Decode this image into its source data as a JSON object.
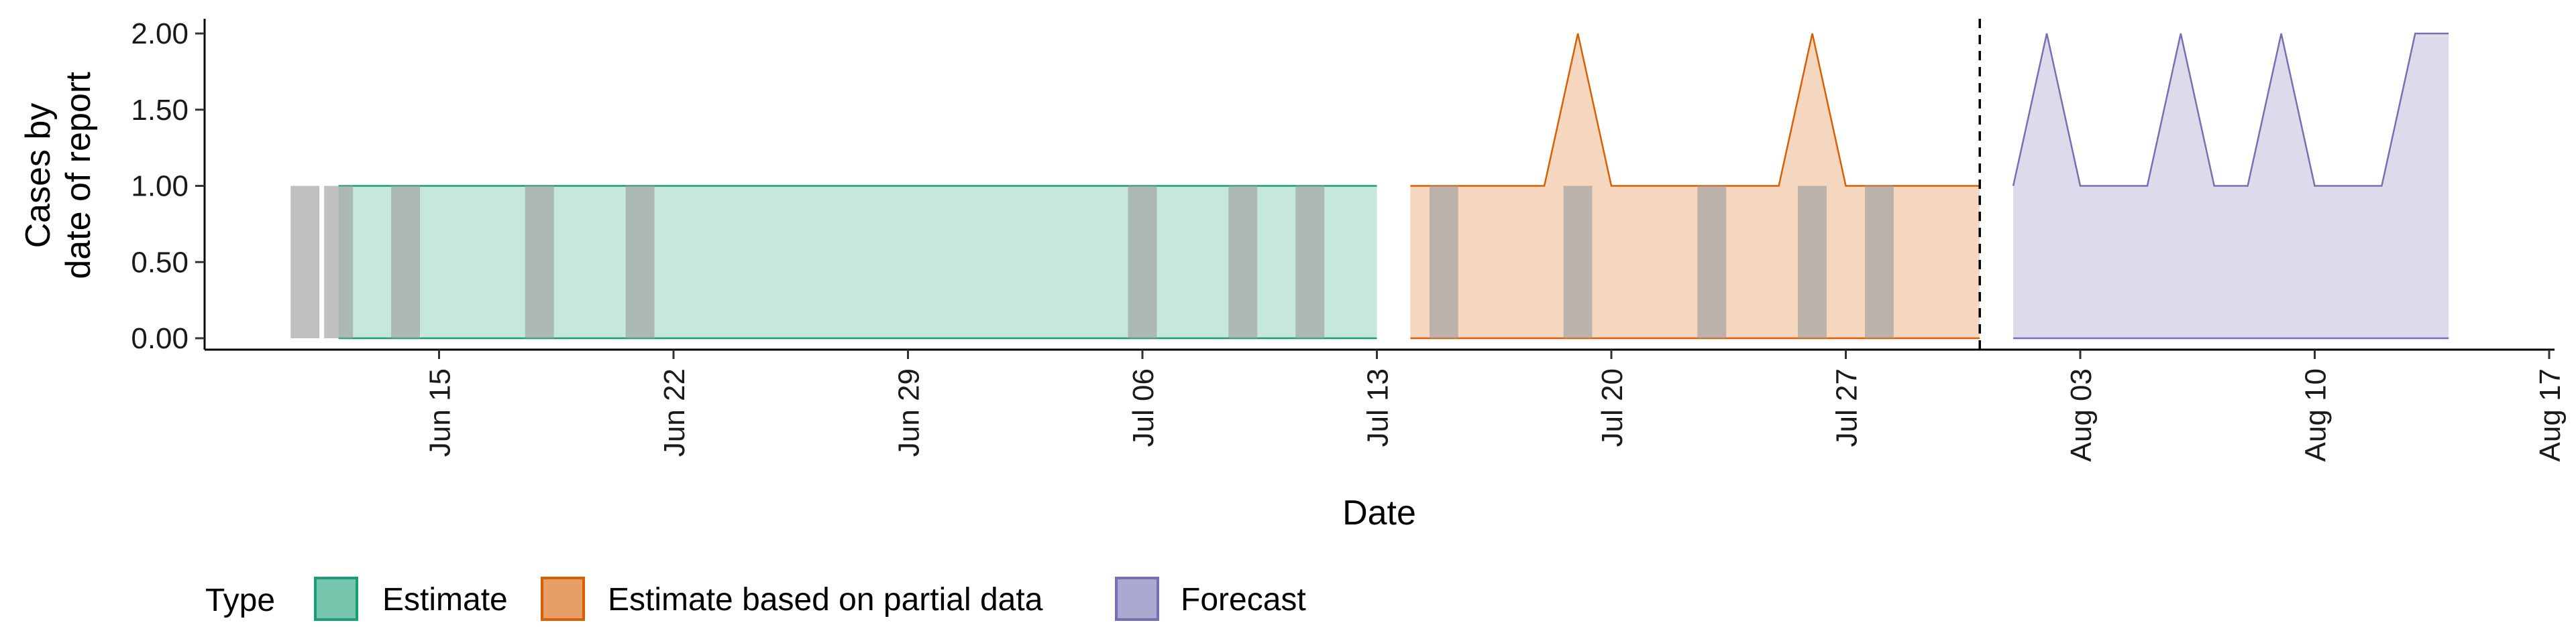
{
  "chart_data": {
    "type": "area",
    "xlabel": "Date",
    "ylabel_lines": [
      "Cases by",
      "date of report"
    ],
    "x_ticks": [
      "2020-06-15",
      "2020-06-22",
      "2020-06-29",
      "2020-07-06",
      "2020-07-13",
      "2020-07-20",
      "2020-07-27",
      "2020-08-03",
      "2020-08-10",
      "2020-08-17"
    ],
    "x_tick_labels": [
      "Jun 15",
      "Jun 22",
      "Jun 29",
      "Jul 06",
      "Jul 13",
      "Jul 20",
      "Jul 27",
      "Aug 03",
      "Aug 10",
      "Aug 17"
    ],
    "xlim": [
      "2020-06-08",
      "2020-08-17"
    ],
    "y_ticks": [
      0,
      0.5,
      1,
      1.5,
      2
    ],
    "y_tick_labels": [
      "0.00",
      "0.50",
      "1.00",
      "1.50",
      "2.00"
    ],
    "ylim": [
      0,
      2
    ],
    "forecast_line_date": "2020-07-31",
    "legend_title": "Type",
    "legend_position": "bottom",
    "series": [
      {
        "name": "Estimate",
        "fill": "#1b9e77",
        "line": "#1b9e77",
        "dates": [
          "2020-06-12",
          "2020-07-13"
        ],
        "values": [
          1,
          1
        ]
      },
      {
        "name": "Estimate based on partial data",
        "fill": "#d95f02",
        "line": "#d95f02",
        "dates": [
          "2020-07-14",
          "2020-07-15",
          "2020-07-16",
          "2020-07-17",
          "2020-07-18",
          "2020-07-19",
          "2020-07-20",
          "2020-07-21",
          "2020-07-22",
          "2020-07-23",
          "2020-07-24",
          "2020-07-25",
          "2020-07-26",
          "2020-07-27",
          "2020-07-28",
          "2020-07-29",
          "2020-07-30",
          "2020-07-31"
        ],
        "values": [
          1,
          1,
          1,
          1,
          1,
          2,
          1,
          1,
          1,
          1,
          1,
          1,
          2,
          1,
          1,
          1,
          1,
          1
        ]
      },
      {
        "name": "Forecast",
        "fill": "#7570b3",
        "line": "#7570b3",
        "dates": [
          "2020-08-01",
          "2020-08-02",
          "2020-08-03",
          "2020-08-04",
          "2020-08-05",
          "2020-08-06",
          "2020-08-07",
          "2020-08-08",
          "2020-08-09",
          "2020-08-10",
          "2020-08-11",
          "2020-08-12",
          "2020-08-13",
          "2020-08-14"
        ],
        "values": [
          1,
          2,
          1,
          1,
          1,
          2,
          1,
          1,
          2,
          1,
          1,
          1,
          2,
          2
        ]
      }
    ],
    "report_bars": {
      "color": "#9e9e9e",
      "dates": [
        "2020-06-11",
        "2020-06-12",
        "2020-06-14",
        "2020-06-18",
        "2020-06-21",
        "2020-07-06",
        "2020-07-09",
        "2020-07-11",
        "2020-07-15",
        "2020-07-19",
        "2020-07-23",
        "2020-07-26",
        "2020-07-28"
      ],
      "values": [
        1,
        1,
        1,
        1,
        1,
        1,
        1,
        1,
        1,
        1,
        1,
        1,
        1
      ]
    }
  }
}
